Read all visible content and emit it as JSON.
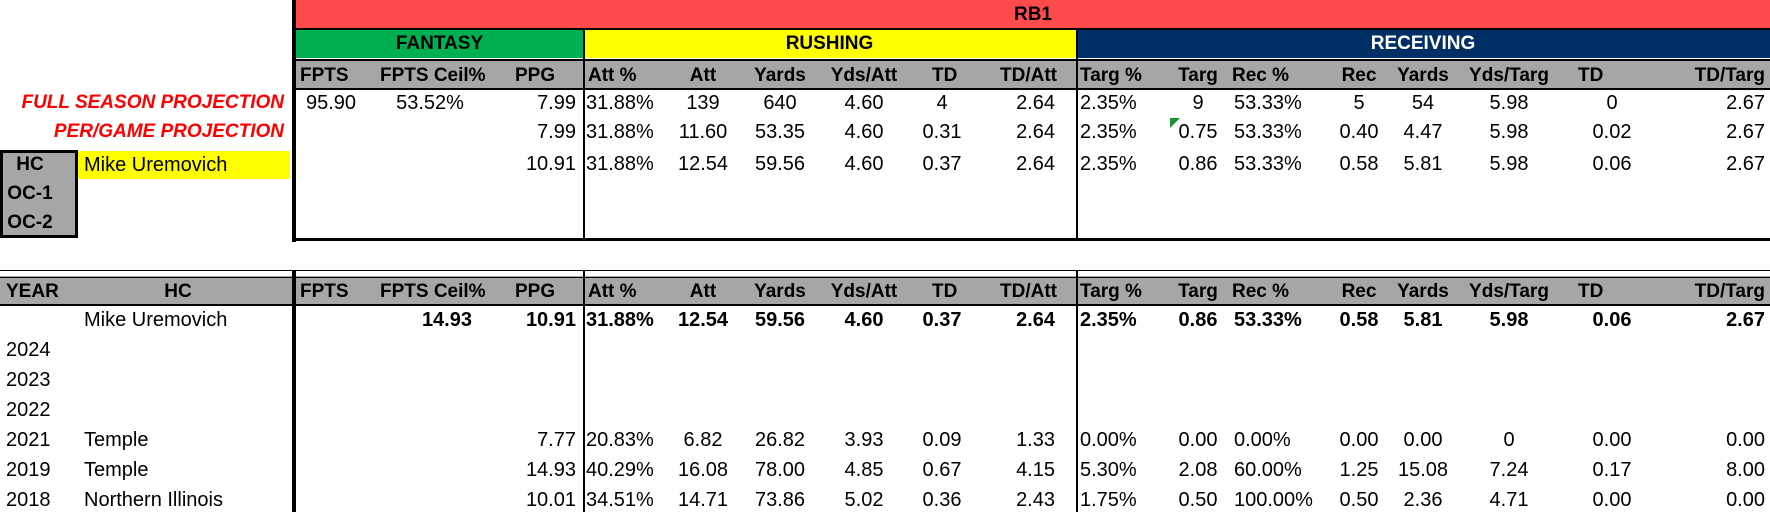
{
  "colors": {
    "rb1_band": "#ff4b4b",
    "fantasy_band": "#00b050",
    "rushing_band": "#ffff00",
    "receiving_band": "#002f66",
    "header_gray": "#a6a6a6",
    "projection_red": "#ff0000",
    "coach_highlight": "#ffff00"
  },
  "banner": {
    "title": "RB1"
  },
  "groups": {
    "fantasy": "FANTASY",
    "rushing": "RUSHING",
    "receiving": "RECEIVING"
  },
  "columns": [
    "FPTS",
    "FPTS Ceil%",
    "PPG",
    "Att %",
    "Att",
    "Yards",
    "Yds/Att",
    "TD",
    "TD/Att",
    "Targ %",
    "Targ",
    "Rec %",
    "Rec",
    "Yards",
    "Yds/Targ",
    "TD",
    "TD/Targ"
  ],
  "staff": {
    "labels": [
      "HC",
      "OC-1",
      "OC-2"
    ],
    "hc_name": "Mike Uremovich"
  },
  "projections": [
    {
      "label": "FULL SEASON PROJECTION",
      "values": [
        "95.90",
        "53.52%",
        "7.99",
        "31.88%",
        "139",
        "640",
        "4.60",
        "4",
        "2.64",
        "2.35%",
        "9",
        "53.33%",
        "5",
        "54",
        "5.98",
        "0",
        "2.67"
      ]
    },
    {
      "label": "PER/GAME PROJECTION",
      "values": [
        "",
        "",
        "7.99",
        "31.88%",
        "11.60",
        "53.35",
        "4.60",
        "0.31",
        "2.64",
        "2.35%",
        "0.75",
        "53.33%",
        "0.40",
        "4.47",
        "5.98",
        "0.02",
        "2.67"
      ]
    },
    {
      "label": "",
      "values": [
        "",
        "",
        "10.91",
        "31.88%",
        "12.54",
        "59.56",
        "4.60",
        "0.37",
        "2.64",
        "2.35%",
        "0.86",
        "53.33%",
        "0.58",
        "5.81",
        "5.98",
        "0.06",
        "2.67"
      ]
    }
  ],
  "history": {
    "year_header": "YEAR",
    "hc_header": "HC",
    "rows": [
      {
        "year": "",
        "team": "Mike Uremovich",
        "bold": true,
        "values": [
          "",
          "14.93",
          "10.91",
          "31.88%",
          "12.54",
          "59.56",
          "4.60",
          "0.37",
          "2.64",
          "2.35%",
          "0.86",
          "53.33%",
          "0.58",
          "5.81",
          "5.98",
          "0.06",
          "2.67"
        ]
      },
      {
        "year": "2024",
        "team": "",
        "values": [
          "",
          "",
          "",
          "",
          "",
          "",
          "",
          "",
          "",
          "",
          "",
          "",
          "",
          "",
          "",
          "",
          ""
        ]
      },
      {
        "year": "2023",
        "team": "",
        "values": [
          "",
          "",
          "",
          "",
          "",
          "",
          "",
          "",
          "",
          "",
          "",
          "",
          "",
          "",
          "",
          "",
          ""
        ]
      },
      {
        "year": "2022",
        "team": "",
        "values": [
          "",
          "",
          "",
          "",
          "",
          "",
          "",
          "",
          "",
          "",
          "",
          "",
          "",
          "",
          "",
          "",
          ""
        ]
      },
      {
        "year": "2021",
        "team": "Temple",
        "values": [
          "",
          "",
          "7.77",
          "20.83%",
          "6.82",
          "26.82",
          "3.93",
          "0.09",
          "1.33",
          "0.00%",
          "0.00",
          "0.00%",
          "0.00",
          "0.00",
          "0",
          "0.00",
          "0.00"
        ]
      },
      {
        "year": "2019",
        "team": "Temple",
        "values": [
          "",
          "",
          "14.93",
          "40.29%",
          "16.08",
          "78.00",
          "4.85",
          "0.67",
          "4.15",
          "5.30%",
          "2.08",
          "60.00%",
          "1.25",
          "15.08",
          "7.24",
          "0.17",
          "8.00"
        ]
      },
      {
        "year": "2018",
        "team": "Northern Illinois",
        "values": [
          "",
          "",
          "10.01",
          "34.51%",
          "14.71",
          "73.86",
          "5.02",
          "0.36",
          "2.43",
          "1.75%",
          "0.50",
          "100.00%",
          "0.50",
          "2.36",
          "4.71",
          "0.00",
          "0.00"
        ]
      }
    ]
  }
}
